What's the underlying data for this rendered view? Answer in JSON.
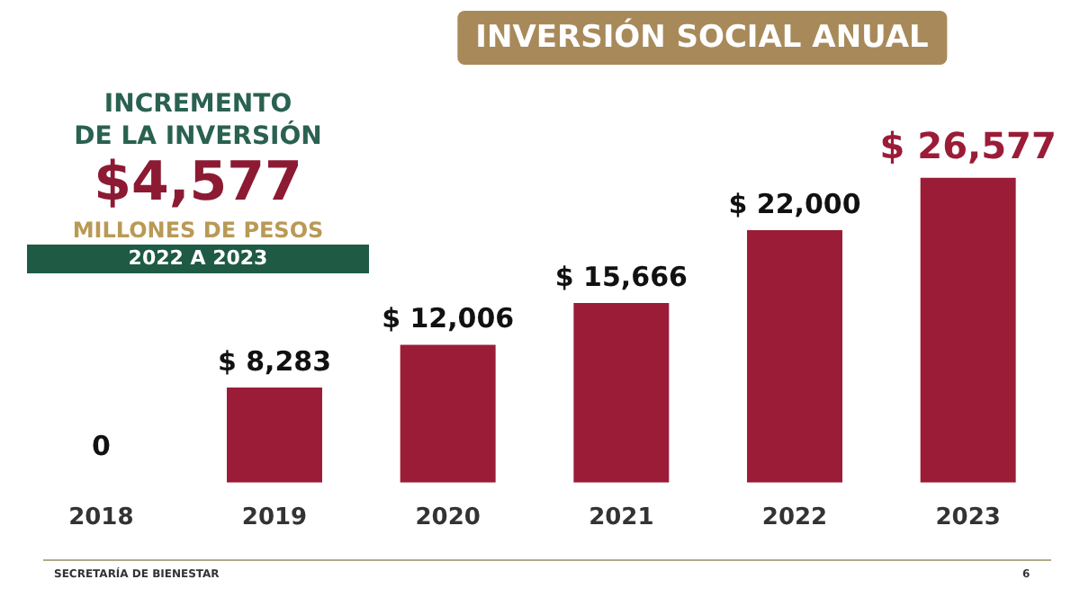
{
  "chart_data": {
    "type": "bar",
    "title": "INVERSIÓN SOCIAL ANUAL",
    "categories": [
      "2018",
      "2019",
      "2020",
      "2021",
      "2022",
      "2023"
    ],
    "values": [
      0,
      8283,
      12006,
      15666,
      22000,
      26577
    ],
    "value_labels": [
      "0",
      "$ 8,283",
      "$ 12,006",
      "$ 15,666",
      "$ 22,000",
      "$ 26,577"
    ],
    "color": "#9b1c37",
    "relative": false,
    "annotations": [
      "INCREMENTO",
      "DE LA INVERSIÓN",
      "$4,577",
      "MILLONES DE PESOS",
      "2022 A 2023",
      "SECRETARÍA DE BIENESTAR",
      "6"
    ]
  }
}
